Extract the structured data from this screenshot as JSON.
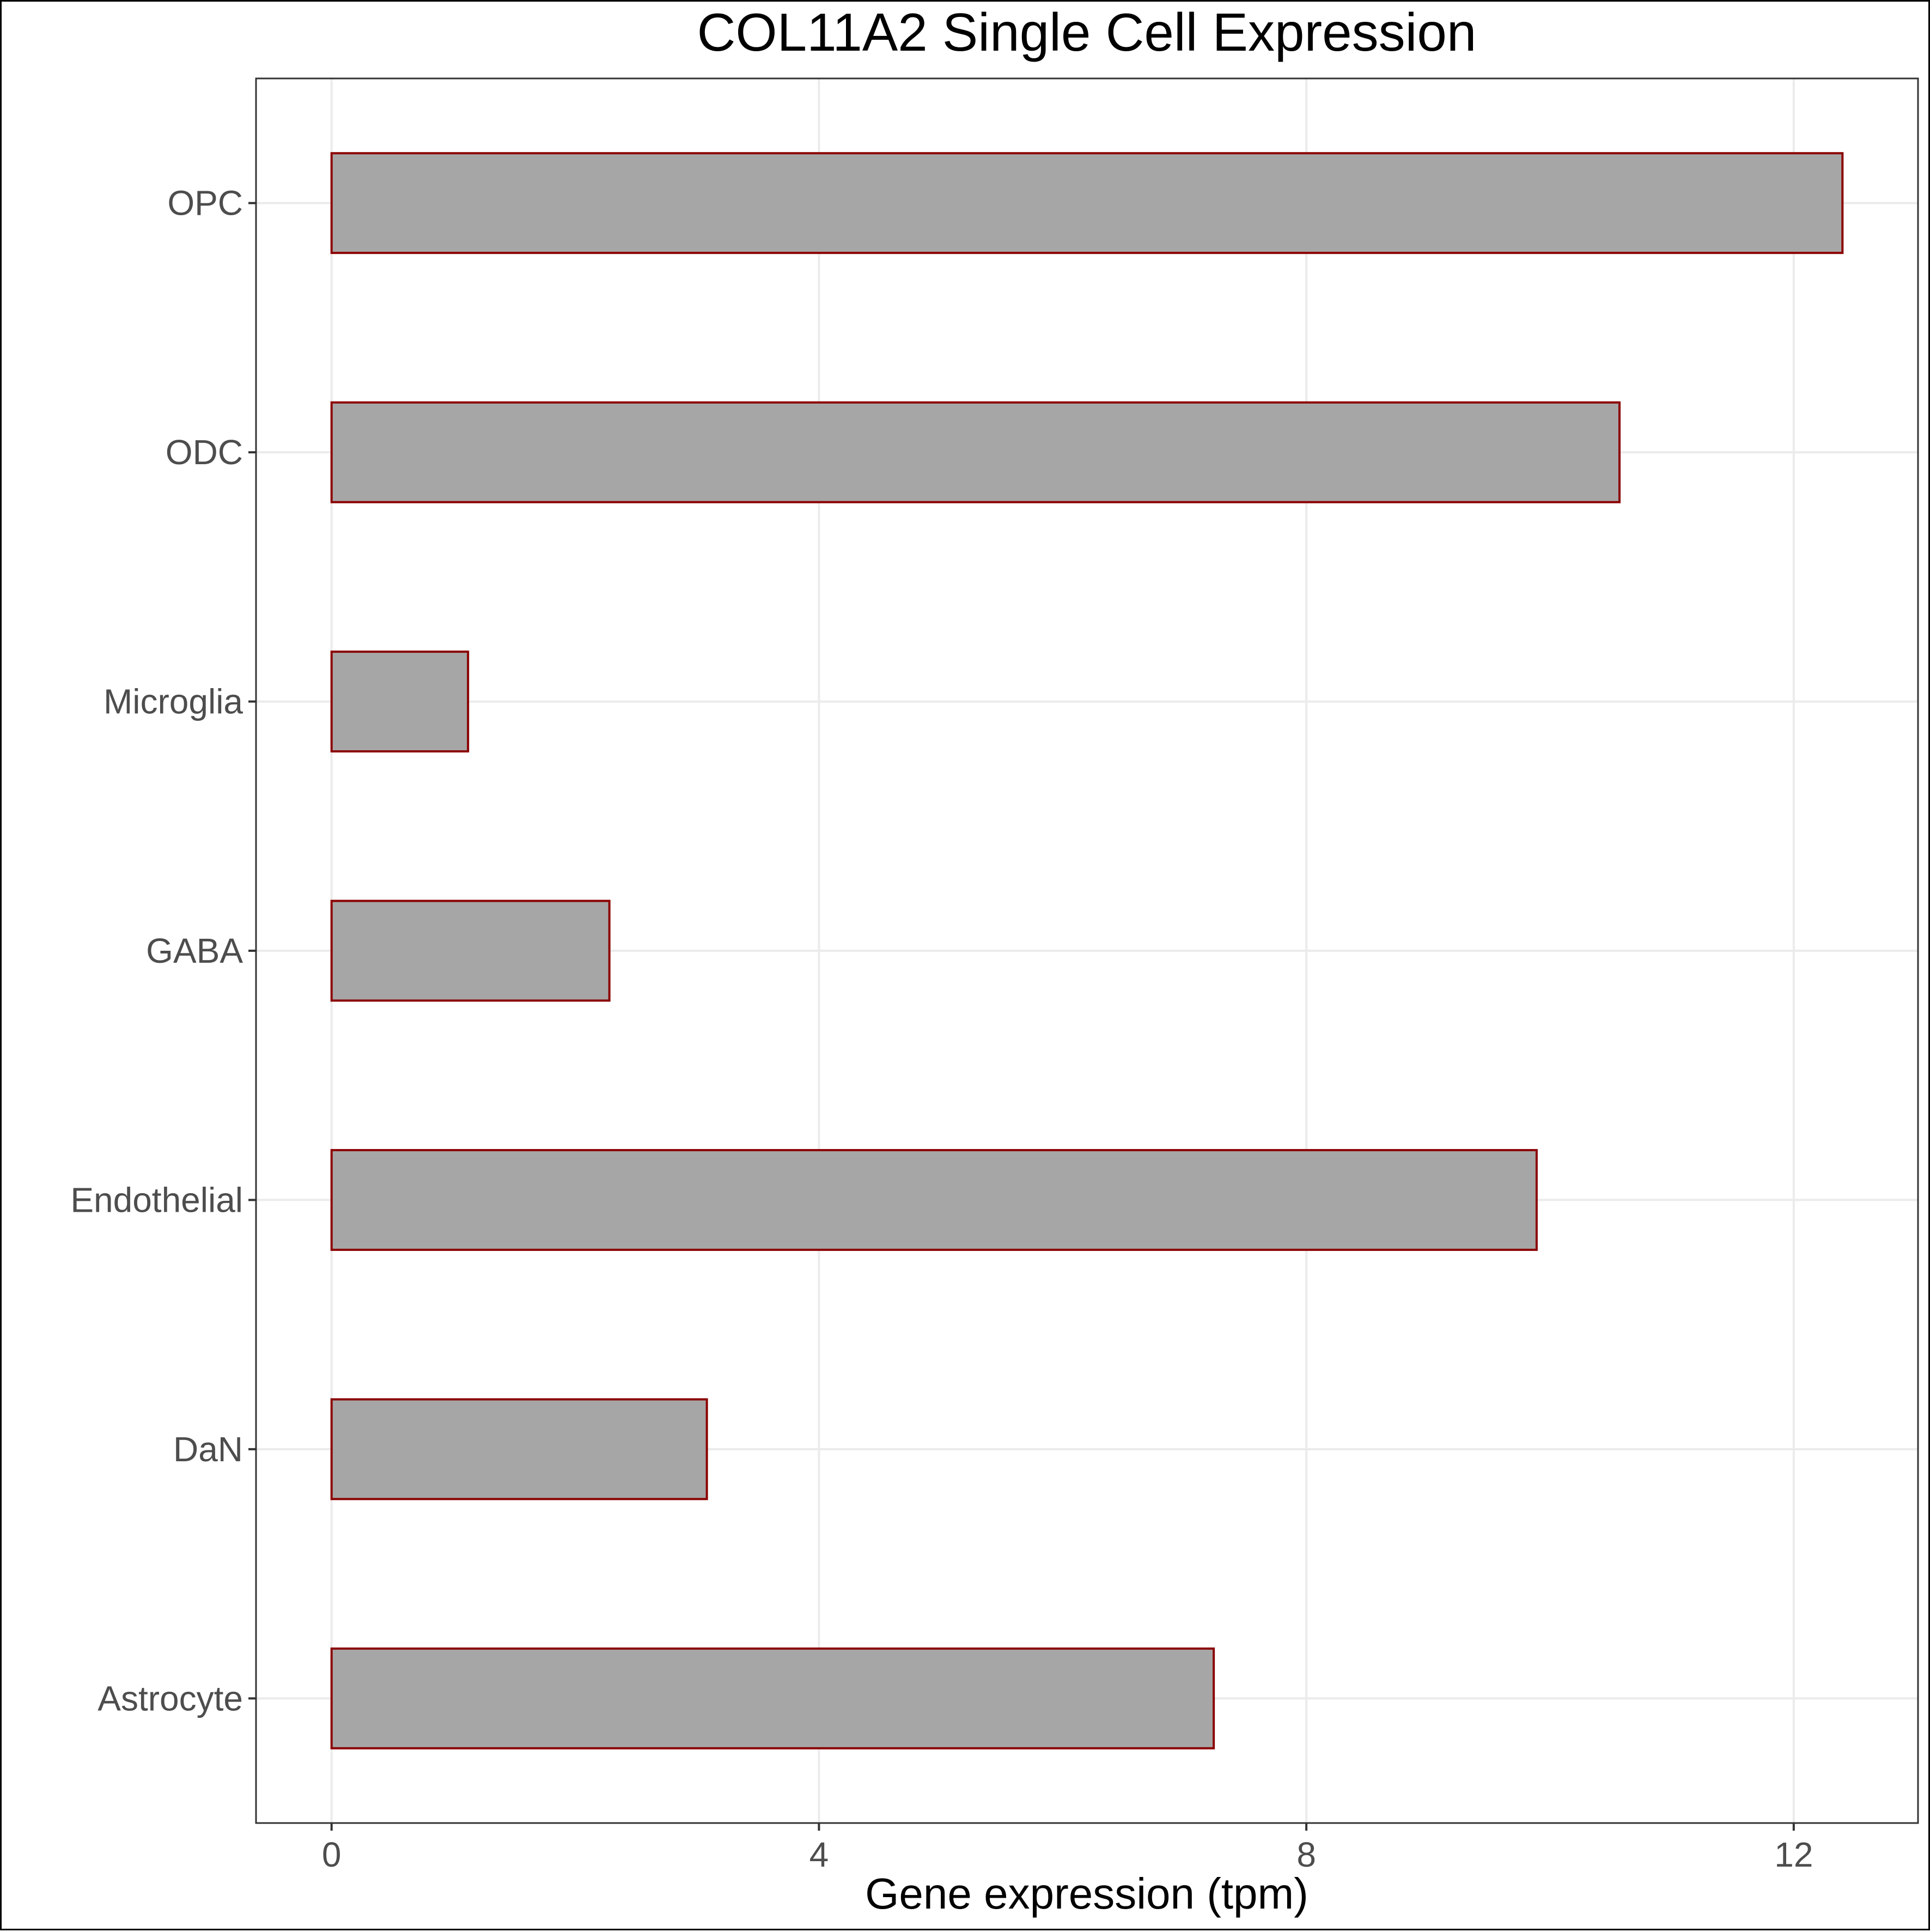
{
  "chart_data": {
    "type": "bar",
    "orientation": "horizontal",
    "title": "COL11A2 Single Cell Expression",
    "xlabel": "Gene expression (tpm)",
    "ylabel": "",
    "categories": [
      "Astrocyte",
      "DaN",
      "Endothelial",
      "GABA",
      "Microglia",
      "ODC",
      "OPC"
    ],
    "values": [
      7.24,
      3.08,
      9.89,
      2.28,
      1.12,
      10.57,
      12.4
    ],
    "xlim": [
      -0.62,
      13.02
    ],
    "xticks": [
      0,
      4,
      8,
      12
    ],
    "xtick_labels": [
      "0",
      "4",
      "8",
      "12"
    ],
    "grid": true,
    "legend": "none",
    "colors": {
      "bar_fill": "#a6a6a6",
      "bar_outline": "#8b0000",
      "grid": "#ebebeb",
      "panel_border": "#333333",
      "tick_text": "#4d4d4d"
    }
  }
}
